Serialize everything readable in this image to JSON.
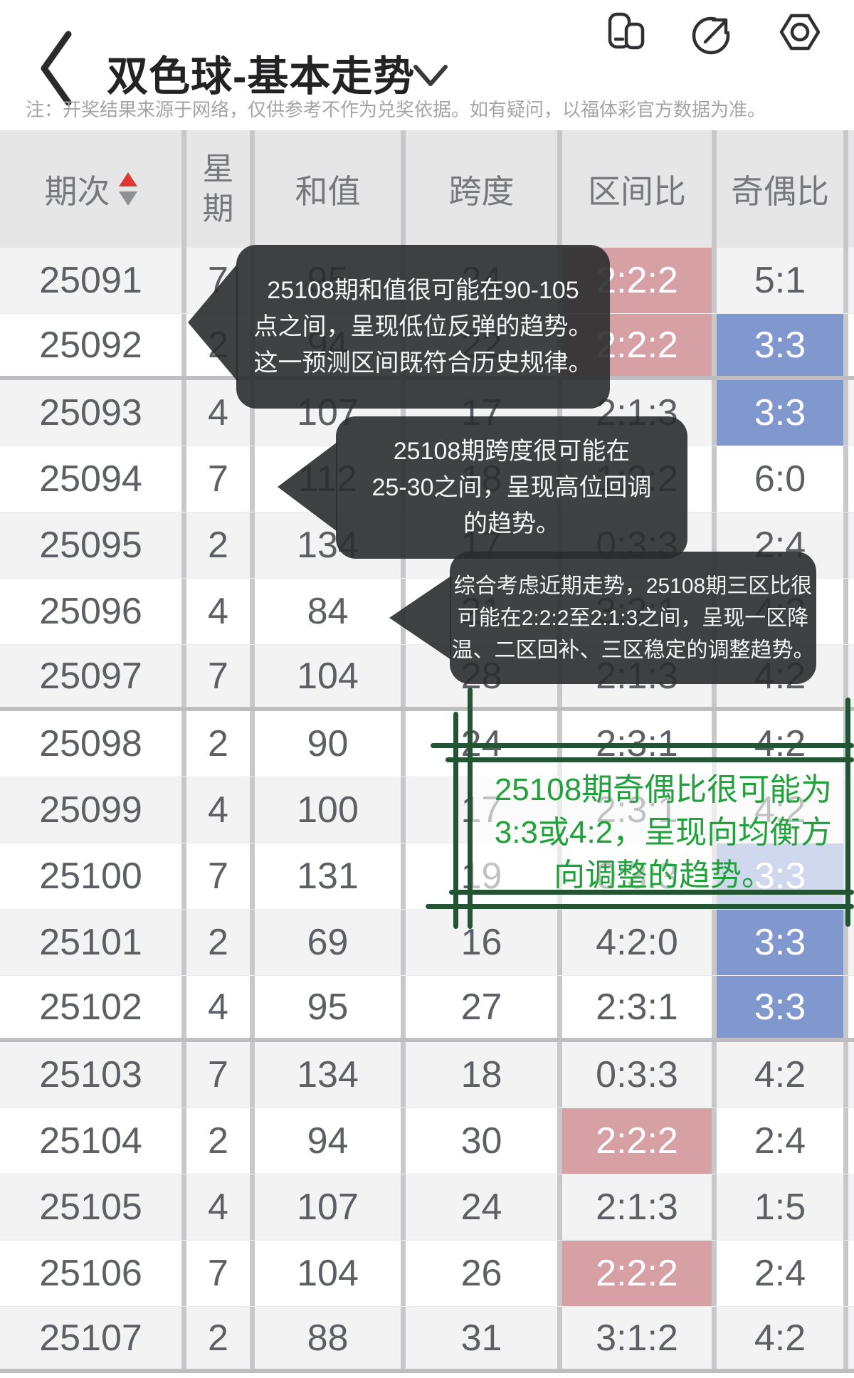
{
  "app_bar": {
    "title": "双色球-基本走势",
    "back_icon": "chevron-left",
    "dropdown_icon": "chevron-down",
    "action_icons": [
      "app-switcher",
      "share",
      "record"
    ]
  },
  "notice": "注：开奖结果来源于网络，仅供参考不作为兑奖依据。如有疑问，以福体彩官方数据为准。",
  "table": {
    "columns": [
      "期次",
      "星期",
      "和值",
      "跨度",
      "区间比",
      "奇偶比"
    ],
    "sort_column": "期次",
    "highlight_rules": {
      "zone_ratio": "2:2:2",
      "odd_even": "3:3"
    },
    "rows": [
      {
        "period": "25091",
        "weekday": "7",
        "sum": "95",
        "span": "24",
        "zone_ratio": "2:2:2",
        "odd_even": "5:1"
      },
      {
        "period": "25092",
        "weekday": "2",
        "sum": "94",
        "span": "22",
        "zone_ratio": "2:2:2",
        "odd_even": "3:3"
      },
      {
        "period": "25093",
        "weekday": "4",
        "sum": "107",
        "span": "17",
        "zone_ratio": "2:1:3",
        "odd_even": "3:3"
      },
      {
        "period": "25094",
        "weekday": "7",
        "sum": "112",
        "span": "18",
        "zone_ratio": "1:3:2",
        "odd_even": "6:0"
      },
      {
        "period": "25095",
        "weekday": "2",
        "sum": "134",
        "span": "17",
        "zone_ratio": "0:3:3",
        "odd_even": "2:4"
      },
      {
        "period": "25096",
        "weekday": "4",
        "sum": "84",
        "span": "21",
        "zone_ratio": "3:2:1",
        "odd_even": "4:2"
      },
      {
        "period": "25097",
        "weekday": "7",
        "sum": "104",
        "span": "28",
        "zone_ratio": "2:1:3",
        "odd_even": "4:2"
      },
      {
        "period": "25098",
        "weekday": "2",
        "sum": "90",
        "span": "24",
        "zone_ratio": "2:3:1",
        "odd_even": "4:2"
      },
      {
        "period": "25099",
        "weekday": "4",
        "sum": "100",
        "span": "17",
        "zone_ratio": "2:3:1",
        "odd_even": "4:2"
      },
      {
        "period": "25100",
        "weekday": "7",
        "sum": "131",
        "span": "19",
        "zone_ratio": "0:3:3",
        "odd_even": "3:3"
      },
      {
        "period": "25101",
        "weekday": "2",
        "sum": "69",
        "span": "16",
        "zone_ratio": "4:2:0",
        "odd_even": "3:3"
      },
      {
        "period": "25102",
        "weekday": "4",
        "sum": "95",
        "span": "27",
        "zone_ratio": "2:3:1",
        "odd_even": "3:3"
      },
      {
        "period": "25103",
        "weekday": "7",
        "sum": "134",
        "span": "18",
        "zone_ratio": "0:3:3",
        "odd_even": "4:2"
      },
      {
        "period": "25104",
        "weekday": "2",
        "sum": "94",
        "span": "30",
        "zone_ratio": "2:2:2",
        "odd_even": "2:4"
      },
      {
        "period": "25105",
        "weekday": "4",
        "sum": "107",
        "span": "24",
        "zone_ratio": "2:1:3",
        "odd_even": "1:5"
      },
      {
        "period": "25106",
        "weekday": "7",
        "sum": "104",
        "span": "26",
        "zone_ratio": "2:2:2",
        "odd_even": "2:4"
      },
      {
        "period": "25107",
        "weekday": "2",
        "sum": "88",
        "span": "31",
        "zone_ratio": "3:1:2",
        "odd_even": "4:2"
      }
    ],
    "group_end_rows": [
      1,
      6,
      11,
      16
    ]
  },
  "tooltips": [
    {
      "id": "sum-prediction",
      "lines": [
        "25108期和值很可能在90-105",
        "点之间，呈现低位反弹的趋势。",
        "这一预测区间既符合历史规律。"
      ]
    },
    {
      "id": "span-prediction",
      "lines": [
        "25108期跨度很可能在",
        "25-30之间，呈现高位回调",
        "的趋势。"
      ]
    },
    {
      "id": "zone-prediction",
      "lines": [
        "综合考虑近期走势，25108期三区比很",
        "可能在2:2:2至2:1:3之间，呈现一区降",
        "温、二区回补、三区稳定的调整趋势。"
      ]
    }
  ],
  "annotation": {
    "lines": [
      "25108期奇偶比很可能为",
      "3:3或4:2，呈现向均衡方",
      "向调整的趋势。"
    ],
    "text_color": "#21a13c",
    "line_color": "#235434"
  },
  "colors": {
    "zone_highlight": "#d6a0a4",
    "odd_even_highlight": "#8198cf",
    "sort_up": "#dd3832",
    "sort_down": "#8e8f93",
    "tooltip_bg": "#2a2c2f",
    "header_bg": "#e6e6e7",
    "row_alt_bg": "#f3f3f4"
  }
}
